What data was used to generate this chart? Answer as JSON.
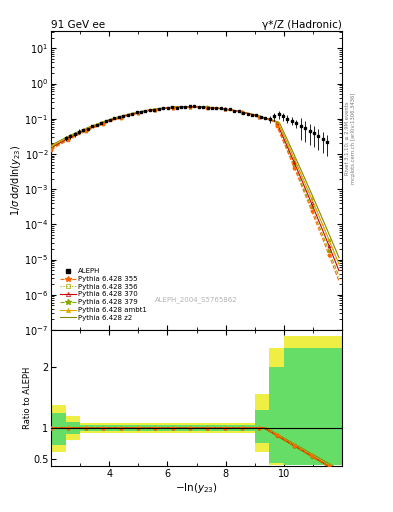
{
  "title_left": "91 GeV ee",
  "title_right": "γ*/Z (Hadronic)",
  "ylabel_main": "1/σ dσ/dln(y_{23})",
  "ylabel_ratio": "Ratio to ALEPH",
  "watermark": "ALEPH_2004_S5765862",
  "right_label_top": "Rivet 3.1.10; ≥ 2.9M events",
  "right_label_bot": "mcplots.cern.ch [arXiv:1306.3436]",
  "xlim": [
    2.0,
    12.0
  ],
  "ylim_main_log": [
    -7,
    1.5
  ],
  "ylim_ratio": [
    0.38,
    2.6
  ],
  "colors": {
    "aleph": "#000000",
    "p355": "#ff6600",
    "p356": "#aaaa00",
    "p370": "#cc0000",
    "p379": "#88aa00",
    "pambt1": "#ddaa00",
    "pz2": "#888800"
  },
  "green_band": "#00cc44",
  "yellow_band": "#dddd00",
  "bg_color": "#ffffff"
}
